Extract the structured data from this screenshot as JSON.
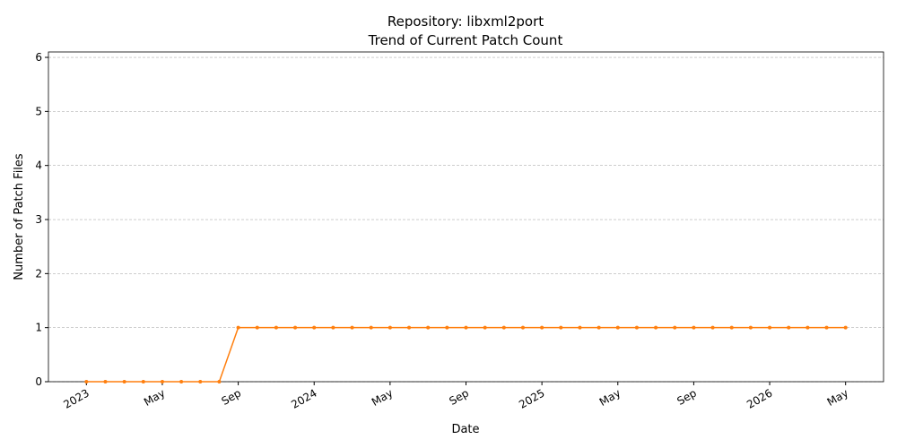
{
  "chart_data": {
    "type": "line",
    "title": [
      "Repository: libxml2port",
      "Trend of Current Patch Count"
    ],
    "xlabel": "Date",
    "ylabel": "Number of Patch Files",
    "x": [
      "2023-01",
      "2023-02",
      "2023-03",
      "2023-04",
      "2023-05",
      "2023-06",
      "2023-07",
      "2023-08",
      "2023-09",
      "2023-10",
      "2023-11",
      "2023-12",
      "2024-01",
      "2024-02",
      "2024-03",
      "2024-04",
      "2024-05",
      "2024-06",
      "2024-07",
      "2024-08",
      "2024-09",
      "2024-10",
      "2024-11",
      "2024-12",
      "2025-01",
      "2025-02",
      "2025-03",
      "2025-04",
      "2025-05",
      "2025-06",
      "2025-07",
      "2025-08",
      "2025-09",
      "2025-10",
      "2025-11",
      "2025-12",
      "2026-01",
      "2026-02",
      "2026-03",
      "2026-04",
      "2026-05"
    ],
    "series": [
      {
        "color": "#ff7f0e",
        "values": [
          0,
          0,
          0,
          0,
          0,
          0,
          0,
          0,
          1,
          1,
          1,
          1,
          1,
          1,
          1,
          1,
          1,
          1,
          1,
          1,
          1,
          1,
          1,
          1,
          1,
          1,
          1,
          1,
          1,
          1,
          1,
          1,
          1,
          1,
          1,
          1,
          1,
          1,
          1,
          1,
          1
        ]
      }
    ],
    "xlim": [
      "2022-11",
      "2026-07"
    ],
    "xticks": [
      {
        "value": "2023-01",
        "label": "2023"
      },
      {
        "value": "2023-05",
        "label": "May"
      },
      {
        "value": "2023-09",
        "label": "Sep"
      },
      {
        "value": "2024-01",
        "label": "2024"
      },
      {
        "value": "2024-05",
        "label": "May"
      },
      {
        "value": "2024-09",
        "label": "Sep"
      },
      {
        "value": "2025-01",
        "label": "2025"
      },
      {
        "value": "2025-05",
        "label": "May"
      },
      {
        "value": "2025-09",
        "label": "Sep"
      },
      {
        "value": "2026-01",
        "label": "2026"
      },
      {
        "value": "2026-05",
        "label": "May"
      }
    ],
    "ylim": [
      0,
      6.1
    ],
    "yticks": [
      0,
      1,
      2,
      3,
      4,
      5,
      6
    ],
    "grid": "y"
  }
}
